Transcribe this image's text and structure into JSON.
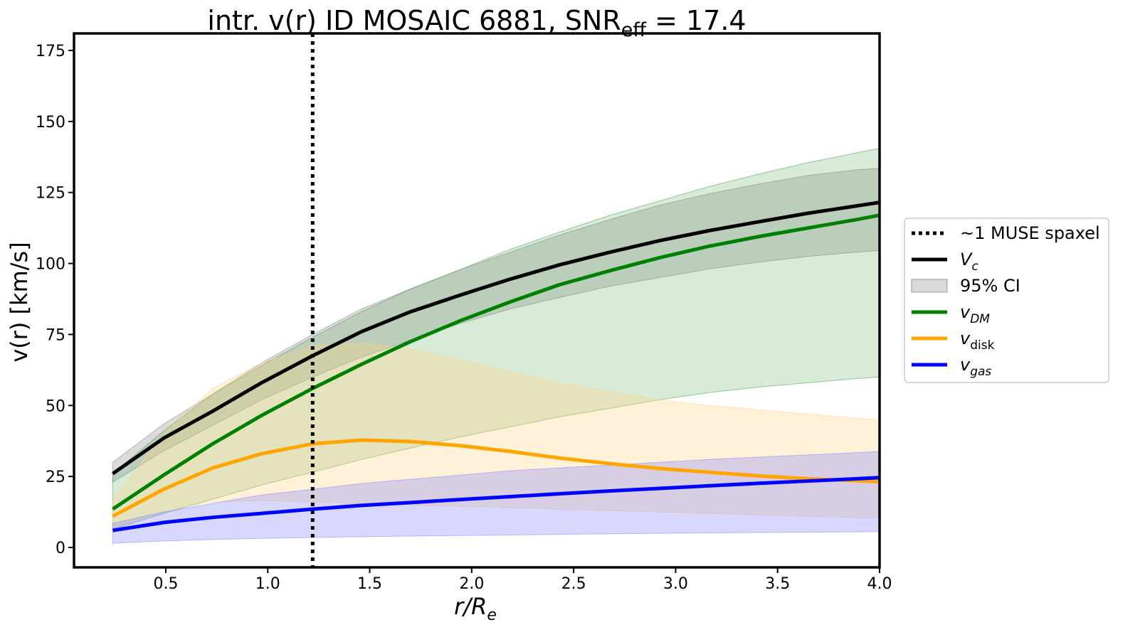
{
  "chart_data": {
    "type": "line",
    "title": "intr. v(r) ID MOSAIC 6881, SNR",
    "title_sub": "eff",
    "title_suffix": " = 17.4",
    "xlabel": "r/R",
    "xlabel_sub": "e",
    "ylabel": "v(r) [km/s]",
    "xlim": [
      0.05,
      4.0
    ],
    "ylim": [
      -7,
      181
    ],
    "xticks": [
      0.5,
      1.0,
      1.5,
      2.0,
      2.5,
      3.0,
      3.5,
      4.0
    ],
    "xtick_labels": [
      "0.5",
      "1.0",
      "1.5",
      "2.0",
      "2.5",
      "3.0",
      "3.5",
      "4.0"
    ],
    "yticks": [
      0,
      25,
      50,
      75,
      100,
      125,
      150,
      175
    ],
    "ytick_labels": [
      "0",
      "25",
      "50",
      "75",
      "100",
      "125",
      "150",
      "175"
    ],
    "grid": false,
    "legend_position": "outside-right",
    "vline": {
      "x": 1.22,
      "style": "dotted",
      "color": "#000000",
      "label": "~1 MUSE spaxel"
    },
    "x": [
      0.24,
      0.49,
      0.73,
      0.97,
      1.22,
      1.46,
      1.7,
      1.95,
      2.19,
      2.43,
      2.68,
      2.92,
      3.16,
      3.41,
      3.65,
      3.89,
      4.0
    ],
    "series": [
      {
        "name": "V",
        "name_sub": "c",
        "color": "#000000",
        "values": [
          26,
          38.5,
          48,
          58,
          67.5,
          76,
          83,
          89,
          94.5,
          99.5,
          104,
          108,
          111.5,
          114.7,
          117.7,
          120.3,
          121.5
        ],
        "band_lower": [
          23,
          34,
          43,
          52,
          60,
          67,
          73,
          79,
          84,
          88,
          92,
          95,
          98,
          100.5,
          102.5,
          104,
          104.5
        ],
        "band_upper": [
          30,
          43.5,
          54,
          65,
          75,
          84,
          91,
          98,
          104,
          110,
          115.5,
          120.5,
          124.5,
          128,
          131,
          133,
          133.5
        ]
      },
      {
        "name": "v",
        "name_sub": "DM",
        "color": "#008000",
        "fill": "#1f8f1f",
        "values": [
          13.5,
          25.5,
          36.5,
          46.5,
          56,
          64.5,
          72.5,
          80,
          86.5,
          92.5,
          97.5,
          102,
          106,
          109.5,
          112.5,
          115.5,
          117
        ],
        "band_lower": [
          6.5,
          12,
          17,
          22,
          26.5,
          31,
          35,
          39,
          42.5,
          46,
          49,
          52,
          54.5,
          56.5,
          58,
          59.5,
          60
        ],
        "band_upper": [
          26,
          41,
          54,
          64,
          74,
          83,
          91,
          98,
          105,
          111,
          117,
          122,
          127,
          131.5,
          135.5,
          139,
          140.5
        ]
      },
      {
        "name": "v",
        "name_sub": "disk",
        "color": "#ffa500",
        "values": [
          11,
          20.5,
          28,
          33,
          36.5,
          37.8,
          37.3,
          35.8,
          33.8,
          31.5,
          29.5,
          27.8,
          26.5,
          25.2,
          24.2,
          23.5,
          23.2
        ],
        "band_lower": [
          7,
          13,
          16,
          16.5,
          16,
          15.5,
          15,
          14.5,
          14,
          13.5,
          13,
          12.5,
          12,
          11.5,
          11,
          10.5,
          10.5
        ],
        "band_upper": [
          17,
          40,
          56,
          65,
          71,
          72,
          70,
          66,
          62,
          58,
          55,
          52,
          50,
          48.5,
          47,
          45.5,
          45
        ]
      },
      {
        "name": "v",
        "name_sub": "gas",
        "color": "#0000ff",
        "values": [
          6,
          8.8,
          10.6,
          12,
          13.5,
          14.8,
          15.8,
          16.9,
          17.9,
          18.9,
          19.9,
          20.8,
          21.7,
          22.6,
          23.4,
          24.2,
          24.6
        ],
        "band_lower": [
          1.5,
          2.3,
          2.8,
          3.2,
          3.5,
          3.8,
          4,
          4.2,
          4.4,
          4.6,
          4.8,
          5,
          5.1,
          5.3,
          5.4,
          5.5,
          5.6
        ],
        "band_upper": [
          8.5,
          12.5,
          15.5,
          18.5,
          20.5,
          22.5,
          24,
          25.5,
          27,
          28,
          29,
          30,
          31,
          31.8,
          32.6,
          33.4,
          33.8
        ]
      }
    ],
    "legend": [
      {
        "label": "~1 MUSE spaxel",
        "sub": "",
        "kind": "dotted-line",
        "color": "#000000"
      },
      {
        "label": "V",
        "sub": "c",
        "kind": "line",
        "color": "#000000"
      },
      {
        "label": "95% CI",
        "sub": "",
        "kind": "patch",
        "color": "#bfbfbf"
      },
      {
        "label": "v",
        "sub": "DM",
        "kind": "line",
        "color": "#008000"
      },
      {
        "label": "v",
        "sub": "disk",
        "kind": "line",
        "color": "#ffa500"
      },
      {
        "label": "v",
        "sub": "gas",
        "kind": "line",
        "color": "#0000ff"
      }
    ]
  }
}
